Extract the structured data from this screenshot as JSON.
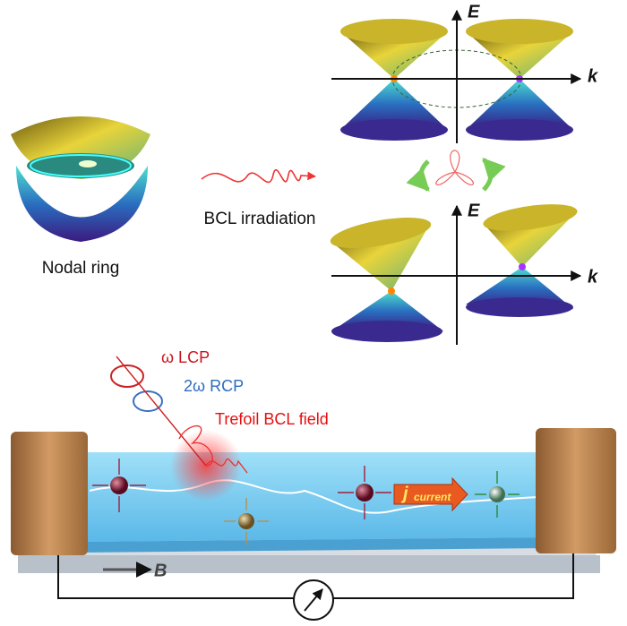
{
  "nodal_ring": {
    "label": "Nodal ring"
  },
  "irradiation": {
    "label": "BCL irradiation"
  },
  "upper_plot": {
    "energy_axis": "E",
    "momentum_axis": "k"
  },
  "lower_plot": {
    "energy_axis": "E",
    "momentum_axis": "k"
  },
  "device": {
    "lcp": "ω LCP",
    "rcp": "2ω RCP",
    "field": "Trefoil BCL field",
    "current": {
      "symbol": "j",
      "subscript": "current"
    },
    "magnetic_field": "B"
  }
}
